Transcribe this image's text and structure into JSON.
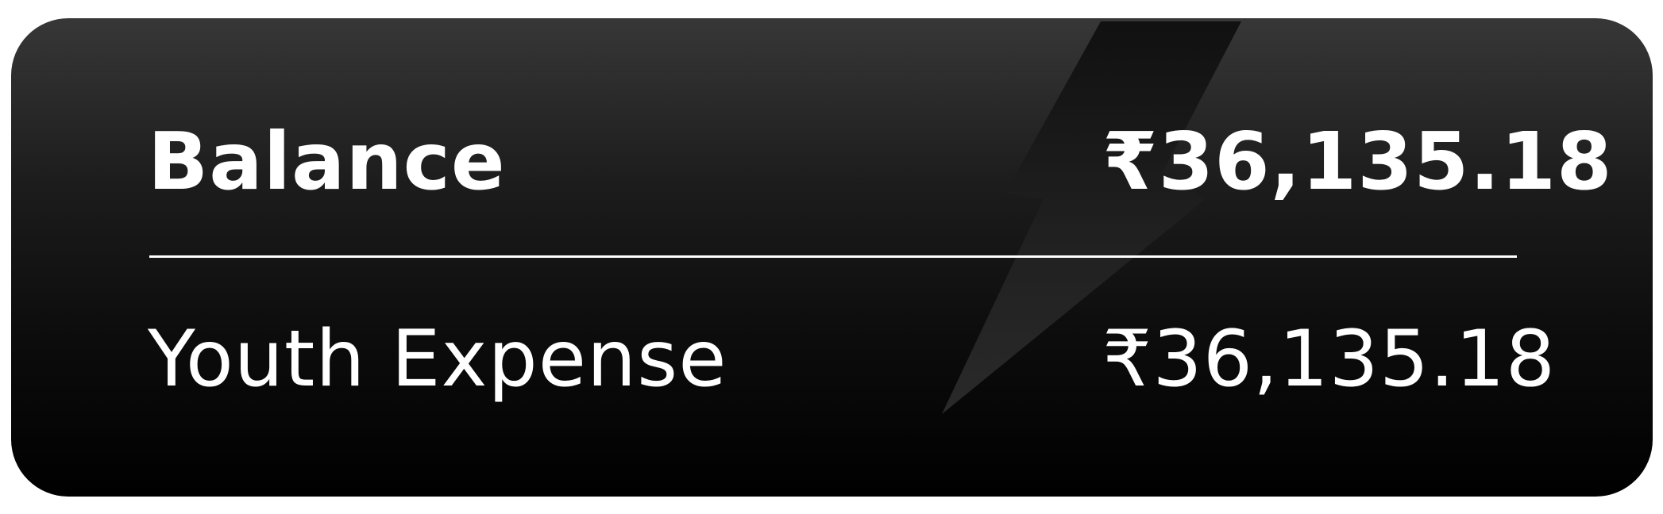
{
  "card": {
    "background_top": "#373737",
    "background_bottom": "#000000",
    "decoration": "lightning-bolt-icon"
  },
  "balance": {
    "label": "Balance",
    "amount": "₹36,135.18"
  },
  "youth_expense": {
    "label": "Youth Expense",
    "amount": "₹36,135.18"
  }
}
